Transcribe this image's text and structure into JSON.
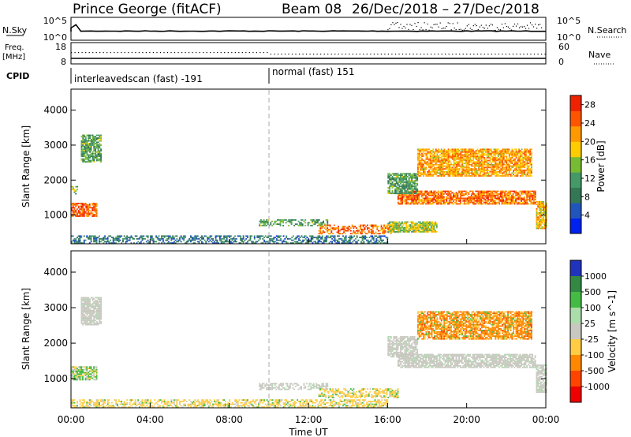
{
  "header": {
    "station": "Prince George (fitACF)",
    "beam": "Beam 08",
    "dates": "26/Dec/2018 – 27/Dec/2018"
  },
  "colors": {
    "scatter_grey": "#c8c8c0",
    "axis": "#000000",
    "divider": "#aaaaaa"
  },
  "chart_data": [
    {
      "id": "nsky-panel",
      "type": "line",
      "left_label": "N.Sky",
      "right_label": "N.Search",
      "left_ticks": [
        "10^5",
        "10^0"
      ],
      "right_ticks": [
        "10^5",
        "10^0"
      ]
    },
    {
      "id": "freq-panel",
      "type": "line",
      "left_label_line1": "Freq.",
      "left_label_line2": "[MHz]",
      "right_label": "Nave",
      "left_ticks": [
        "18",
        "8"
      ],
      "right_ticks": [
        "60",
        "0"
      ]
    },
    {
      "id": "cpid-strip",
      "type": "table",
      "label": "CPID",
      "segments": [
        {
          "start_h": 0,
          "text": "interleavedscan (fast) -191"
        },
        {
          "start_h": 10,
          "text": "normal (fast) 151"
        }
      ]
    },
    {
      "id": "power-panel",
      "type": "heatmap",
      "xlabel": "",
      "ylabel": "Slant Range [km]",
      "xlim": [
        0,
        24
      ],
      "ylim": [
        180,
        4600
      ],
      "yticks": [
        1000,
        2000,
        3000,
        4000
      ],
      "colorbar_label": "Power [dB]",
      "colorbar_ticks": [
        4,
        8,
        12,
        16,
        20,
        24,
        28
      ],
      "colorbar_range": [
        0,
        30
      ],
      "colorbar_colors": [
        "#0022ee",
        "#2255bb",
        "#337755",
        "#449966",
        "#77bb33",
        "#ffcc00",
        "#ff9900",
        "#ff5500",
        "#ee2200"
      ],
      "regions": [
        {
          "t0": 0.0,
          "t1": 1.3,
          "r0": 950,
          "r1": 1350,
          "level": 25
        },
        {
          "t0": 0.0,
          "t1": 0.3,
          "r0": 1550,
          "r1": 1800,
          "level": 14
        },
        {
          "t0": 0.5,
          "t1": 1.5,
          "r0": 2500,
          "r1": 3300,
          "level": 12
        },
        {
          "t0": 9.5,
          "t1": 13.0,
          "r0": 680,
          "r1": 850,
          "level": 12
        },
        {
          "t0": 12.5,
          "t1": 16.5,
          "r0": 450,
          "r1": 700,
          "level": 24
        },
        {
          "t0": 16.0,
          "t1": 18.5,
          "r0": 500,
          "r1": 800,
          "level": 16
        },
        {
          "t0": 16.5,
          "t1": 23.5,
          "r0": 1300,
          "r1": 1700,
          "level": 24
        },
        {
          "t0": 16.0,
          "t1": 17.5,
          "r0": 1600,
          "r1": 2200,
          "level": 12
        },
        {
          "t0": 17.5,
          "t1": 23.3,
          "r0": 2100,
          "r1": 2900,
          "level": 21
        },
        {
          "t0": 23.5,
          "t1": 24.0,
          "r0": 600,
          "r1": 1400,
          "level": 20
        },
        {
          "t0": 0.0,
          "t1": 16.0,
          "r0": 180,
          "r1": 400,
          "level": 8
        }
      ]
    },
    {
      "id": "velocity-panel",
      "type": "heatmap",
      "xlabel": "Time UT",
      "ylabel": "Slant Range [km]",
      "xlim": [
        0,
        24
      ],
      "ylim": [
        180,
        4600
      ],
      "yticks": [
        1000,
        2000,
        3000,
        4000
      ],
      "xticks": [
        "00:00",
        "04:00",
        "08:00",
        "12:00",
        "16:00",
        "20:00",
        "00:00"
      ],
      "colorbar_label": "Velocity [m s^-1]",
      "colorbar_ticks": [
        1000,
        500,
        100,
        25,
        -25,
        -100,
        -500,
        -1000
      ],
      "colorbar_colors": [
        "#2233bb",
        "#338844",
        "#44bb44",
        "#aaddaa",
        "#c8c8c0",
        "#ffcc44",
        "#ff8800",
        "#ff4400",
        "#ee0000"
      ],
      "regions": [
        {
          "t0": 0.0,
          "t1": 1.3,
          "r0": 950,
          "r1": 1350,
          "kind": "green"
        },
        {
          "t0": 0.5,
          "t1": 1.5,
          "r0": 2500,
          "r1": 3300,
          "kind": "grey"
        },
        {
          "t0": 9.5,
          "t1": 13.0,
          "r0": 680,
          "r1": 850,
          "kind": "grey"
        },
        {
          "t0": 12.5,
          "t1": 16.5,
          "r0": 450,
          "r1": 700,
          "kind": "yellow"
        },
        {
          "t0": 16.5,
          "t1": 23.5,
          "r0": 1300,
          "r1": 1700,
          "kind": "grey"
        },
        {
          "t0": 16.0,
          "t1": 17.5,
          "r0": 1600,
          "r1": 2200,
          "kind": "grey"
        },
        {
          "t0": 17.5,
          "t1": 23.3,
          "r0": 2100,
          "r1": 2900,
          "kind": "orange"
        },
        {
          "t0": 23.5,
          "t1": 24.0,
          "r0": 600,
          "r1": 1400,
          "kind": "grey"
        },
        {
          "t0": 0.0,
          "t1": 16.0,
          "r0": 180,
          "r1": 400,
          "kind": "yellow"
        }
      ]
    }
  ]
}
